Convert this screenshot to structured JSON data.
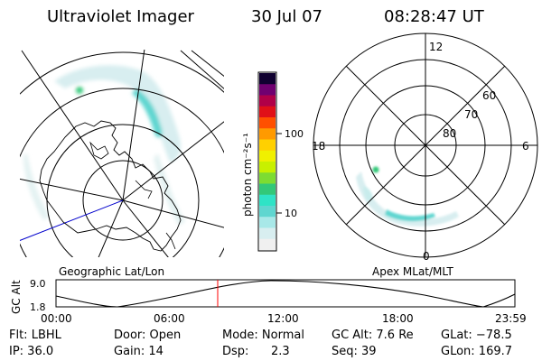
{
  "header": {
    "instrument": "Ultraviolet Imager",
    "date": "30 Jul 07",
    "time": "08:28:47 UT"
  },
  "left_panel": {
    "caption": "Geographic Lat/Lon"
  },
  "right_panel": {
    "caption": "Apex MLat/MLT",
    "mlt_labels": [
      "12",
      "18",
      "6",
      "0"
    ],
    "mlat_labels": [
      "60",
      "70",
      "80"
    ]
  },
  "colorbar": {
    "unit_label": "photon cm⁻²s⁻¹",
    "tick_labels": [
      "100",
      "10"
    ],
    "scale": "log",
    "colors": [
      "#f0f0f0",
      "#d8eef0",
      "#a8e8e8",
      "#5fd6d0",
      "#2fe3c6",
      "#32c878",
      "#7ddc32",
      "#c8f000",
      "#f0f000",
      "#ffd000",
      "#ff9a00",
      "#ff5000",
      "#e01018",
      "#b00048",
      "#700070",
      "#100030"
    ]
  },
  "timeline": {
    "ylabel": "GC Alt",
    "y_ticks": [
      "9.0",
      "1.8"
    ],
    "x_ticks": [
      "00:00",
      "06:00",
      "12:00",
      "18:00",
      "23:59"
    ],
    "marker_time": "08:28:47",
    "marker_color": "#ff0000"
  },
  "info": {
    "flt": "Flt: LBHL",
    "door": "Door: Open",
    "mode": "Mode: Normal",
    "gc_alt": "GC Alt: 7.6 Re",
    "glat": "GLat: −78.5",
    "ip": "IP: 36.0",
    "gain": "Gain: 14",
    "dsp_label": "Dsp:",
    "dsp_value": "2.3",
    "seq": "Seq: 39",
    "glon": "GLon: 169.7"
  }
}
